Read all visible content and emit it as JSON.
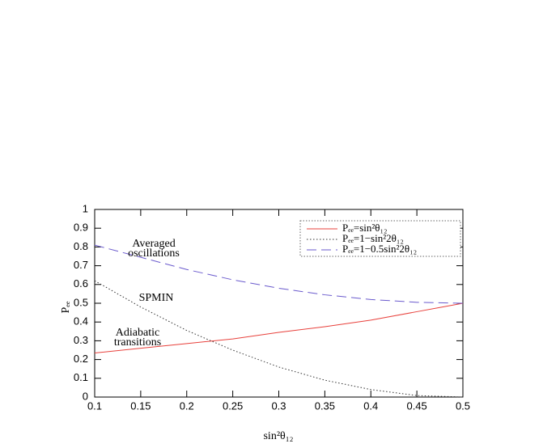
{
  "chart_data": {
    "type": "line",
    "x": [
      0.1,
      0.15,
      0.2,
      0.25,
      0.3,
      0.35,
      0.4,
      0.45,
      0.5
    ],
    "series": [
      {
        "name": "Pₑₑ=sin²θ₁₂",
        "color": "#e8413c",
        "dash": "solid",
        "values": [
          0.235,
          0.26,
          0.285,
          0.31,
          0.345,
          0.375,
          0.41,
          0.455,
          0.5
        ]
      },
      {
        "name": "Pₑₑ=1−sin²2θ₁₂",
        "color": "#333333",
        "dash": "dotted",
        "values": [
          0.62,
          0.48,
          0.355,
          0.25,
          0.16,
          0.09,
          0.04,
          0.008,
          0
        ]
      },
      {
        "name": "Pₑₑ=1−0.5sin²2θ₁₂",
        "color": "#6a5acd",
        "dash": "dashed",
        "values": [
          0.81,
          0.745,
          0.68,
          0.625,
          0.58,
          0.545,
          0.52,
          0.505,
          0.5
        ]
      }
    ],
    "xlabel": "sin²θ₁₂",
    "ylabel": "Pₑₑ",
    "xlim": [
      0.1,
      0.5
    ],
    "ylim": [
      0,
      1
    ],
    "xticks": [
      0.1,
      0.15,
      0.2,
      0.25,
      0.3,
      0.35,
      0.4,
      0.45,
      0.5
    ],
    "yticks": [
      0,
      0.1,
      0.2,
      0.3,
      0.4,
      0.5,
      0.6,
      0.7,
      0.8,
      0.9,
      1
    ],
    "legend": "top-right",
    "annotations": [
      {
        "lines": [
          "Averaged",
          "oscillations"
        ],
        "color": "#8a2be2"
      },
      {
        "lines": [
          "SPMIN"
        ],
        "color": "#000000"
      },
      {
        "lines": [
          "Adiabatic",
          "transitions"
        ],
        "color": "#e0201c"
      }
    ]
  }
}
